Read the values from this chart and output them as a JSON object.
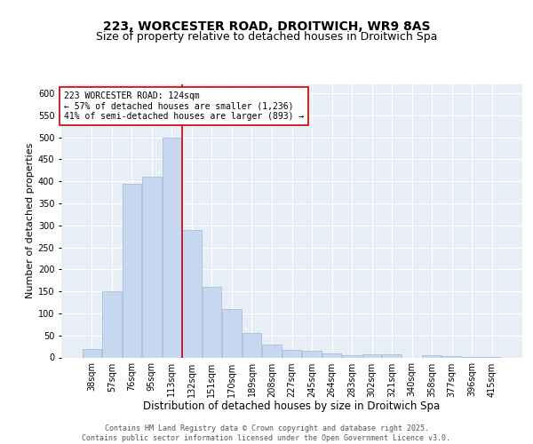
{
  "title_line1": "223, WORCESTER ROAD, DROITWICH, WR9 8AS",
  "title_line2": "Size of property relative to detached houses in Droitwich Spa",
  "xlabel": "Distribution of detached houses by size in Droitwich Spa",
  "ylabel": "Number of detached properties",
  "categories": [
    "38sqm",
    "57sqm",
    "76sqm",
    "95sqm",
    "113sqm",
    "132sqm",
    "151sqm",
    "170sqm",
    "189sqm",
    "208sqm",
    "227sqm",
    "245sqm",
    "264sqm",
    "283sqm",
    "302sqm",
    "321sqm",
    "340sqm",
    "358sqm",
    "377sqm",
    "396sqm",
    "415sqm"
  ],
  "values": [
    20,
    150,
    395,
    410,
    500,
    290,
    160,
    110,
    55,
    30,
    17,
    15,
    10,
    5,
    7,
    7,
    0,
    5,
    3,
    2,
    1
  ],
  "bar_color": "#c5d8f0",
  "bar_edge_color": "#a0b8d8",
  "vline_x": 4.5,
  "vline_color": "#cc0000",
  "annotation_text": "223 WORCESTER ROAD: 124sqm\n← 57% of detached houses are smaller (1,236)\n41% of semi-detached houses are larger (893) →",
  "annotation_box_color": "#ffffff",
  "annotation_box_edge": "#cc0000",
  "ylim": [
    0,
    620
  ],
  "yticks": [
    0,
    50,
    100,
    150,
    200,
    250,
    300,
    350,
    400,
    450,
    500,
    550,
    600
  ],
  "background_color": "#e8eef5",
  "grid_color": "#ffffff",
  "footnote": "Contains HM Land Registry data © Crown copyright and database right 2025.\nContains public sector information licensed under the Open Government Licence v3.0.",
  "title_fontsize": 10,
  "subtitle_fontsize": 9,
  "xlabel_fontsize": 8.5,
  "ylabel_fontsize": 8,
  "tick_fontsize": 7,
  "annotation_fontsize": 7,
  "footnote_fontsize": 6
}
